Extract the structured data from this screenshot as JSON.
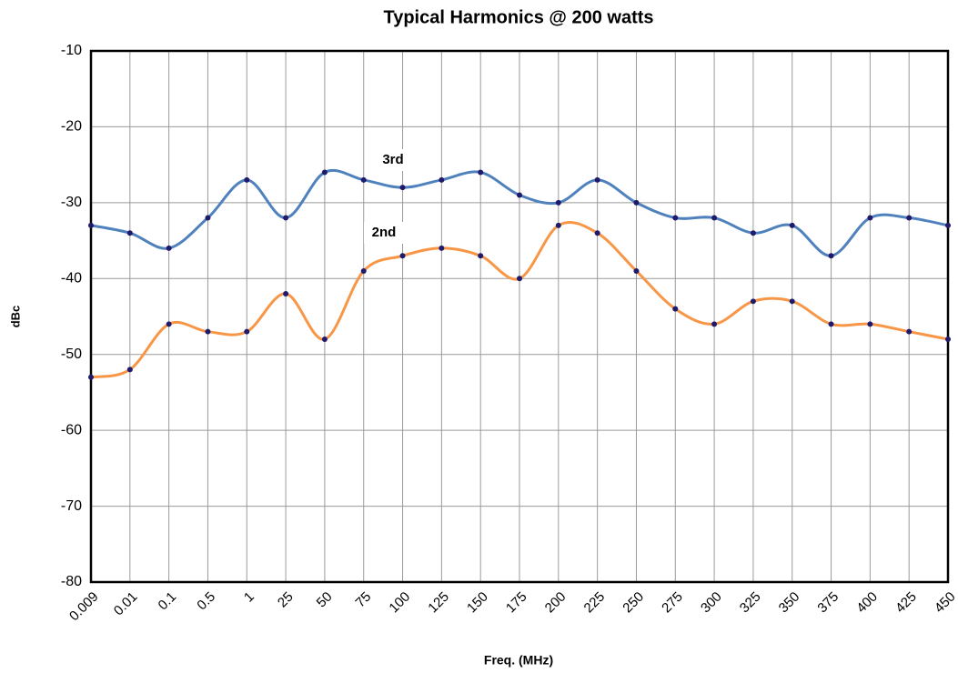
{
  "chart_data": {
    "type": "line",
    "title": "Typical Harmonics @ 200 watts",
    "x_label": "Freq. (MHz)",
    "y_label": "dBc",
    "categories": [
      "0.009",
      "0.01",
      "0.1",
      "0.5",
      "1",
      "25",
      "50",
      "75",
      "100",
      "125",
      "150",
      "175",
      "200",
      "225",
      "250",
      "275",
      "300",
      "325",
      "350",
      "375",
      "400",
      "425",
      "450"
    ],
    "series": [
      {
        "name": "3rd",
        "color": "#4f81bd",
        "values": [
          -33,
          -34,
          -36,
          -32,
          -27,
          -32,
          -26,
          -27,
          -28,
          -27,
          -26,
          -29,
          -30,
          -27,
          -30,
          -32,
          -32,
          -34,
          -33,
          -37,
          -32,
          -32,
          -33
        ]
      },
      {
        "name": "2nd",
        "color": "#f79646",
        "values": [
          -53,
          -52,
          -46,
          -47,
          -47,
          -42,
          -48,
          -39,
          -37,
          -36,
          -37,
          -40,
          -33,
          -34,
          -39,
          -44,
          -46,
          -43,
          -43,
          -46,
          -46,
          -47,
          -48
        ]
      }
    ],
    "marker_color": "#1f1a6b",
    "ylim": [
      -80,
      -10
    ],
    "yticks": [
      -80,
      -70,
      -60,
      -50,
      -40,
      -30,
      -20,
      -10
    ],
    "grid": true,
    "smooth": true
  }
}
